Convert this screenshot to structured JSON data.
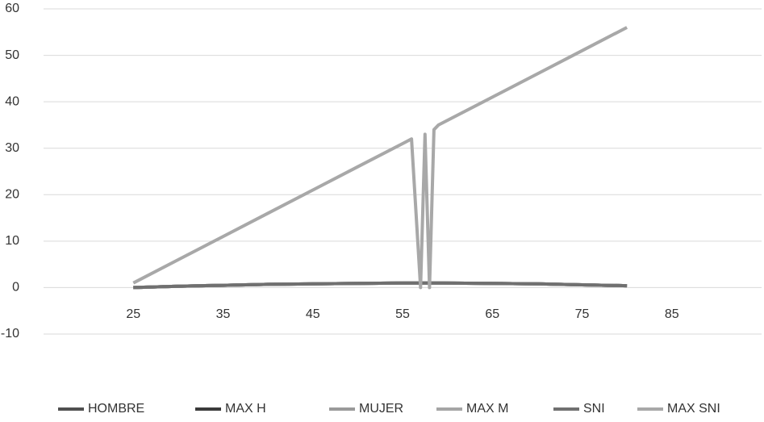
{
  "chart_data": {
    "type": "line",
    "x": [
      25,
      30,
      35,
      40,
      45,
      50,
      55,
      56,
      57,
      57.5,
      58,
      58.5,
      59,
      65,
      70,
      75,
      80
    ],
    "series": [
      {
        "name": "HOMBRE",
        "color": "#505050",
        "values": [
          0,
          0.3,
          0.5,
          0.7,
          0.8,
          0.9,
          1,
          1,
          1,
          1,
          1,
          1,
          1,
          0.9,
          0.8,
          0.6,
          0.4
        ]
      },
      {
        "name": "MAX H",
        "color": "#3a3a3a",
        "values": [
          0,
          0.3,
          0.5,
          0.7,
          0.8,
          0.9,
          1,
          1,
          1,
          1,
          1,
          1,
          1,
          0.9,
          0.8,
          0.6,
          0.4
        ]
      },
      {
        "name": "MUJER",
        "color": "#9a9a9a",
        "values": [
          0,
          0.3,
          0.5,
          0.7,
          0.8,
          0.9,
          1,
          1,
          1,
          1,
          1,
          1,
          1,
          0.9,
          0.8,
          0.6,
          0.4
        ]
      },
      {
        "name": "MAX M",
        "color": "#a5a5a5",
        "values": [
          0,
          0.3,
          0.5,
          0.7,
          0.8,
          0.9,
          1,
          1,
          1,
          1,
          1,
          1,
          1,
          0.9,
          0.8,
          0.6,
          0.4
        ]
      },
      {
        "name": "SNI",
        "color": "#707070",
        "values": [
          0,
          0.3,
          0.5,
          0.7,
          0.8,
          0.9,
          1,
          1,
          1,
          1,
          1,
          1,
          1,
          0.9,
          0.8,
          0.6,
          0.4
        ]
      },
      {
        "name": "MAX SNI",
        "color": "#a8a8a8",
        "values": [
          1,
          6,
          11,
          16,
          21,
          26,
          31,
          32,
          0,
          33,
          0,
          34,
          35,
          41,
          46,
          51,
          56
        ]
      }
    ],
    "xlim": [
      15,
      95
    ],
    "xticks": [
      25,
      35,
      45,
      55,
      65,
      75,
      85
    ],
    "ylim": [
      -10,
      60
    ],
    "yticks": [
      -10,
      0,
      10,
      20,
      30,
      40,
      50,
      60
    ],
    "grid": true,
    "legend": "bottom"
  }
}
